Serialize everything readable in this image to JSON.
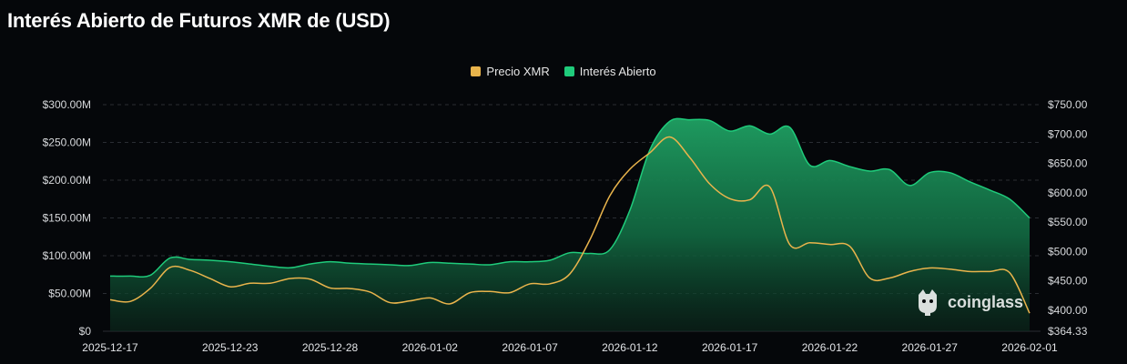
{
  "colors": {
    "background": "#05070a",
    "price_line": "#e9b44c",
    "oi_line": "#1fcb7b",
    "grid": "#2a2d33"
  },
  "chart_data": {
    "type": "area",
    "title": "Interés Abierto de Futuros XMR de (USD)",
    "legend_position": "top-center",
    "grid": true,
    "x_tick_labels": [
      "2025-12-17",
      "2025-12-23",
      "2025-12-28",
      "2026-01-02",
      "2026-01-07",
      "2026-01-12",
      "2026-01-17",
      "2026-01-22",
      "2026-01-27",
      "2026-02-01"
    ],
    "y_left_tick_labels": [
      "$0",
      "$50.00M",
      "$100.00M",
      "$150.00M",
      "$200.00M",
      "$250.00M",
      "$300.00M"
    ],
    "y_right_tick_labels": [
      "$364.33",
      "$400.00",
      "$450.00",
      "$500.00",
      "$550.00",
      "$600.00",
      "$650.00",
      "$700.00",
      "$750.00"
    ],
    "ylim_left": [
      0,
      300
    ],
    "ylim_right": [
      364.33,
      750
    ],
    "x": [
      "2025-12-17",
      "2025-12-18",
      "2025-12-19",
      "2025-12-20",
      "2025-12-21",
      "2025-12-22",
      "2025-12-23",
      "2025-12-24",
      "2025-12-25",
      "2025-12-26",
      "2025-12-27",
      "2025-12-28",
      "2025-12-29",
      "2025-12-30",
      "2025-12-31",
      "2026-01-01",
      "2026-01-02",
      "2026-01-03",
      "2026-01-04",
      "2026-01-05",
      "2026-01-06",
      "2026-01-07",
      "2026-01-08",
      "2026-01-09",
      "2026-01-10",
      "2026-01-11",
      "2026-01-12",
      "2026-01-13",
      "2026-01-14",
      "2026-01-15",
      "2026-01-16",
      "2026-01-17",
      "2026-01-18",
      "2026-01-19",
      "2026-01-20",
      "2026-01-21",
      "2026-01-22",
      "2026-01-23",
      "2026-01-24",
      "2026-01-25",
      "2026-01-26",
      "2026-01-27",
      "2026-01-28",
      "2026-01-29",
      "2026-01-30",
      "2026-01-31",
      "2026-02-01"
    ],
    "series": [
      {
        "name": "Interés Abierto",
        "axis": "left",
        "values": [
          73,
          73,
          74,
          97,
          95,
          94,
          92,
          89,
          86,
          84,
          89,
          92,
          90,
          89,
          88,
          87,
          91,
          90,
          89,
          88,
          92,
          92,
          94,
          104,
          103,
          108,
          160,
          240,
          278,
          280,
          279,
          265,
          272,
          261,
          270,
          220,
          226,
          218,
          212,
          214,
          193,
          210,
          210,
          198,
          187,
          175,
          150
        ]
      },
      {
        "name": "Precio XMR",
        "axis": "right",
        "values": [
          418,
          415,
          437,
          473,
          468,
          454,
          440,
          446,
          446,
          454,
          453,
          438,
          437,
          431,
          413,
          416,
          421,
          411,
          430,
          432,
          430,
          445,
          445,
          462,
          520,
          595,
          640,
          668,
          695,
          660,
          615,
          590,
          588,
          610,
          512,
          515,
          512,
          509,
          455,
          455,
          466,
          472,
          470,
          466,
          466,
          464,
          395
        ]
      }
    ]
  },
  "watermark": {
    "text": "coinglass"
  }
}
